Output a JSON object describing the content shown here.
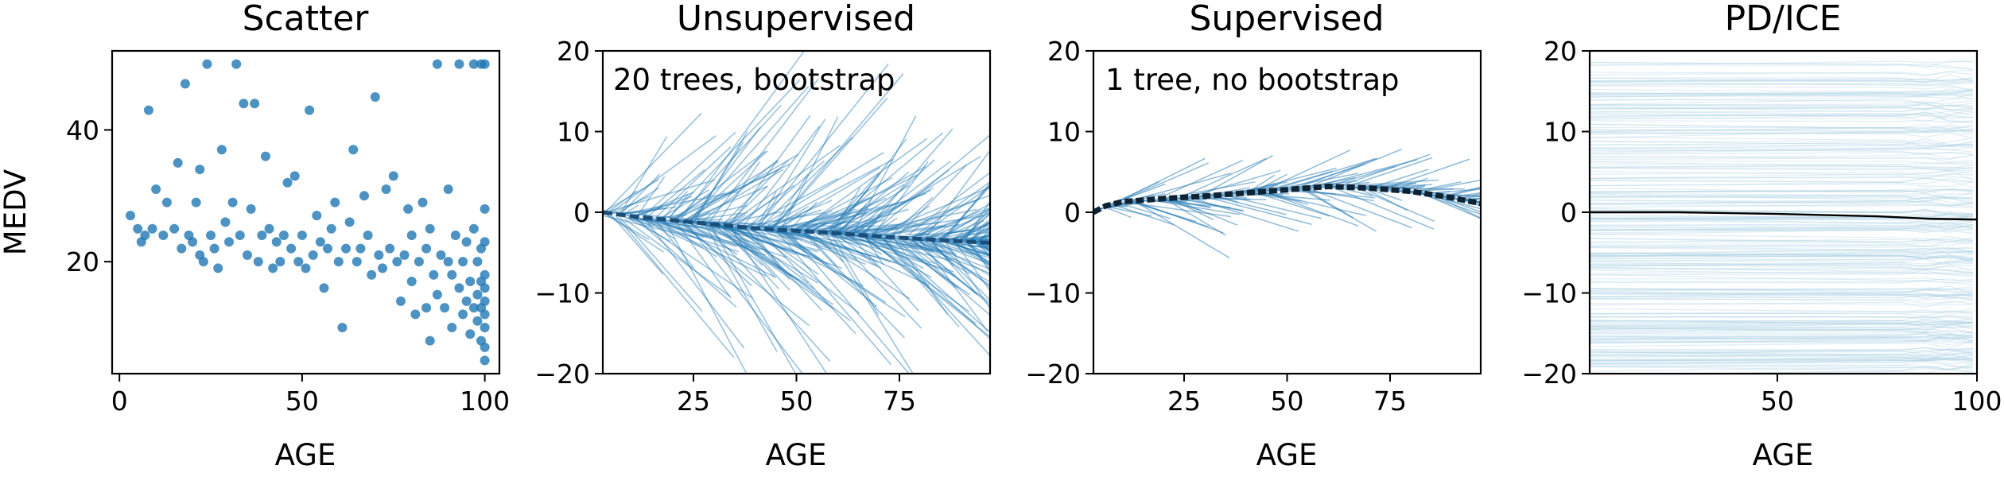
{
  "colors": {
    "scatter_point": "#1f77b4",
    "ice_line": "#1f77b4",
    "pdice_line": "#a6cee3",
    "mean_line": "#000000"
  },
  "chart_data": [
    {
      "type": "scatter",
      "title": "Scatter",
      "xlabel": "AGE",
      "ylabel": "MEDV",
      "xlim": [
        -2,
        104
      ],
      "ylim": [
        3,
        52
      ],
      "xticks": [
        0,
        50,
        100
      ],
      "yticks": [
        20,
        40
      ],
      "grid": false,
      "points": [
        [
          3,
          27
        ],
        [
          5,
          25
        ],
        [
          6,
          23
        ],
        [
          7,
          24
        ],
        [
          8,
          43
        ],
        [
          9,
          25
        ],
        [
          10,
          31
        ],
        [
          12,
          24
        ],
        [
          13,
          29
        ],
        [
          15,
          25
        ],
        [
          16,
          35
        ],
        [
          17,
          22
        ],
        [
          18,
          47
        ],
        [
          19,
          24
        ],
        [
          20,
          23
        ],
        [
          21,
          29
        ],
        [
          22,
          21
        ],
        [
          22,
          34
        ],
        [
          23,
          20
        ],
        [
          24,
          50
        ],
        [
          25,
          24
        ],
        [
          26,
          22
        ],
        [
          27,
          19
        ],
        [
          28,
          37
        ],
        [
          29,
          26
        ],
        [
          30,
          23
        ],
        [
          31,
          29
        ],
        [
          32,
          50
        ],
        [
          33,
          24
        ],
        [
          34,
          44
        ],
        [
          35,
          21
        ],
        [
          36,
          28
        ],
        [
          37,
          44
        ],
        [
          38,
          20
        ],
        [
          39,
          24
        ],
        [
          40,
          36
        ],
        [
          41,
          25
        ],
        [
          42,
          19
        ],
        [
          43,
          23
        ],
        [
          44,
          20
        ],
        [
          45,
          24
        ],
        [
          46,
          32
        ],
        [
          47,
          22
        ],
        [
          48,
          33
        ],
        [
          49,
          20
        ],
        [
          50,
          24
        ],
        [
          51,
          19
        ],
        [
          52,
          43
        ],
        [
          53,
          21
        ],
        [
          54,
          27
        ],
        [
          55,
          23
        ],
        [
          56,
          16
        ],
        [
          57,
          22
        ],
        [
          58,
          25
        ],
        [
          59,
          29
        ],
        [
          60,
          20
        ],
        [
          61,
          10
        ],
        [
          62,
          22
        ],
        [
          63,
          26
        ],
        [
          64,
          37
        ],
        [
          65,
          20
        ],
        [
          66,
          22
        ],
        [
          67,
          30
        ],
        [
          68,
          24
        ],
        [
          69,
          18
        ],
        [
          70,
          45
        ],
        [
          71,
          21
        ],
        [
          72,
          19
        ],
        [
          73,
          31
        ],
        [
          74,
          22
        ],
        [
          75,
          33
        ],
        [
          76,
          20
        ],
        [
          77,
          14
        ],
        [
          78,
          21
        ],
        [
          79,
          28
        ],
        [
          80,
          17
        ],
        [
          80,
          24
        ],
        [
          81,
          12
        ],
        [
          82,
          20
        ],
        [
          83,
          29
        ],
        [
          84,
          13
        ],
        [
          84,
          22
        ],
        [
          85,
          8
        ],
        [
          85,
          25
        ],
        [
          86,
          18
        ],
        [
          87,
          15
        ],
        [
          87,
          50
        ],
        [
          88,
          21
        ],
        [
          89,
          13
        ],
        [
          90,
          20
        ],
        [
          90,
          31
        ],
        [
          91,
          10
        ],
        [
          91,
          18
        ],
        [
          92,
          24
        ],
        [
          93,
          16
        ],
        [
          93,
          50
        ],
        [
          94,
          12
        ],
        [
          94,
          20
        ],
        [
          95,
          14
        ],
        [
          95,
          23
        ],
        [
          96,
          9
        ],
        [
          96,
          17
        ],
        [
          97,
          13
        ],
        [
          97,
          25
        ],
        [
          97,
          50
        ],
        [
          98,
          11
        ],
        [
          98,
          15
        ],
        [
          98,
          20
        ],
        [
          99,
          8
        ],
        [
          99,
          13
        ],
        [
          99,
          17
        ],
        [
          99,
          22
        ],
        [
          99,
          50
        ],
        [
          100,
          7
        ],
        [
          100,
          10
        ],
        [
          100,
          14
        ],
        [
          100,
          18
        ],
        [
          100,
          23
        ],
        [
          100,
          28
        ],
        [
          100,
          50
        ],
        [
          100,
          5
        ],
        [
          100,
          12
        ],
        [
          100,
          16
        ]
      ]
    },
    {
      "type": "line",
      "title": "Unsupervised",
      "annotation": "20 trees, bootstrap",
      "xlabel": "AGE",
      "ylabel": "",
      "xlim": [
        3,
        97
      ],
      "ylim": [
        -20,
        20
      ],
      "xticks": [
        25,
        50,
        75
      ],
      "yticks": [
        -20,
        -10,
        0,
        10,
        20
      ],
      "grid": false,
      "mean_curve": [
        [
          3,
          0
        ],
        [
          10,
          -0.5
        ],
        [
          20,
          -1
        ],
        [
          30,
          -1.5
        ],
        [
          40,
          -2
        ],
        [
          50,
          -2.3
        ],
        [
          60,
          -2.6
        ],
        [
          70,
          -3
        ],
        [
          80,
          -3.3
        ],
        [
          90,
          -3.6
        ],
        [
          97,
          -3.8
        ]
      ]
    },
    {
      "type": "line",
      "title": "Supervised",
      "annotation": "1 tree, no bootstrap",
      "xlabel": "AGE",
      "ylabel": "",
      "xlim": [
        3,
        97
      ],
      "ylim": [
        -20,
        20
      ],
      "xticks": [
        25,
        50,
        75
      ],
      "yticks": [
        -20,
        -10,
        0,
        10,
        20
      ],
      "grid": false,
      "mean_curve": [
        [
          3,
          0
        ],
        [
          6,
          0.8
        ],
        [
          10,
          1.3
        ],
        [
          20,
          1.7
        ],
        [
          30,
          2
        ],
        [
          40,
          2.4
        ],
        [
          50,
          2.8
        ],
        [
          60,
          3.2
        ],
        [
          70,
          3
        ],
        [
          80,
          2.6
        ],
        [
          90,
          1.8
        ],
        [
          97,
          1.1
        ]
      ]
    },
    {
      "type": "line",
      "title": "PD/ICE",
      "xlabel": "AGE",
      "ylabel": "",
      "xlim": [
        3,
        100
      ],
      "ylim": [
        -20,
        20
      ],
      "xticks": [
        50,
        100
      ],
      "yticks": [
        -20,
        -10,
        0,
        10,
        20
      ],
      "grid": false,
      "pd_curve": [
        [
          3,
          0
        ],
        [
          25,
          0
        ],
        [
          50,
          -0.2
        ],
        [
          75,
          -0.5
        ],
        [
          88,
          -0.8
        ],
        [
          100,
          -0.9
        ]
      ]
    }
  ]
}
